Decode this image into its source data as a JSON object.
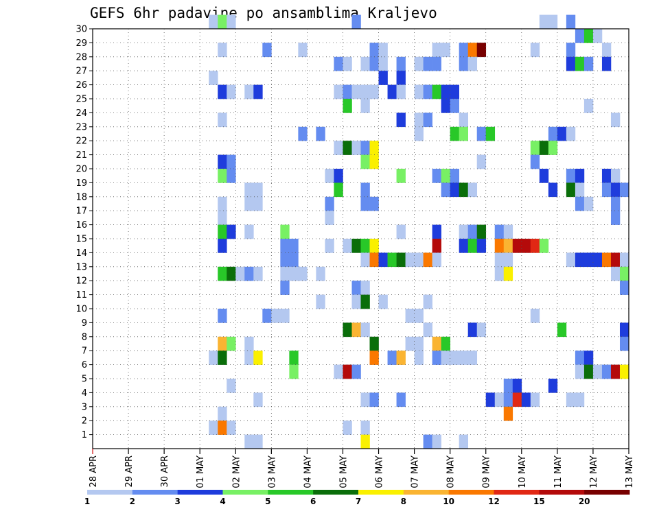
{
  "chart_data": {
    "type": "heatmap",
    "title": "GEFS 6hr padavine po ansamblima Kraljevo",
    "x_tick_labels": [
      "28 APR",
      "29 APR",
      "30 APR",
      "01 MAY",
      "02 MAY",
      "03 MAY",
      "04 MAY",
      "05 MAY",
      "06 MAY",
      "07 MAY",
      "08 MAY",
      "09 MAY",
      "10 MAY",
      "11 MAY",
      "12 MAY",
      "13 MAY"
    ],
    "y_tick_labels": [
      1,
      2,
      3,
      4,
      5,
      6,
      7,
      8,
      9,
      10,
      11,
      12,
      13,
      14,
      15,
      16,
      17,
      18,
      19,
      20,
      21,
      22,
      23,
      24,
      25,
      26,
      27,
      28,
      29,
      30
    ],
    "x_range": [
      0,
      60
    ],
    "y_range": [
      0,
      30
    ],
    "steps_per_day": 4,
    "grid": true,
    "grid_style": "dotted",
    "legend": {
      "placement": "bottom",
      "labels": [
        "1",
        "2",
        "3",
        "4",
        "5",
        "6",
        "7",
        "8",
        "10",
        "12",
        "15",
        "20"
      ],
      "colors": [
        "#b4c8f0",
        "#648cf0",
        "#1e3cdc",
        "#78f064",
        "#28c828",
        "#0a6e0a",
        "#faf000",
        "#fab432",
        "#fa7800",
        "#e12814",
        "#b40a0a",
        "#780000"
      ]
    },
    "cells": [
      [
        13,
        30,
        1
      ],
      [
        14,
        30,
        4
      ],
      [
        15,
        30,
        1
      ],
      [
        29,
        30,
        2
      ],
      [
        50,
        30,
        1
      ],
      [
        51,
        30,
        1
      ],
      [
        53,
        30,
        2
      ],
      [
        54,
        29,
        2
      ],
      [
        55,
        29,
        5
      ],
      [
        56,
        29,
        1
      ],
      [
        14,
        28,
        1
      ],
      [
        19,
        28,
        2
      ],
      [
        23,
        28,
        1
      ],
      [
        31,
        28,
        2
      ],
      [
        32,
        28,
        1
      ],
      [
        38,
        28,
        1
      ],
      [
        39,
        28,
        1
      ],
      [
        41,
        28,
        2
      ],
      [
        42,
        28,
        9
      ],
      [
        43,
        28,
        12
      ],
      [
        49,
        28,
        1
      ],
      [
        53,
        28,
        2
      ],
      [
        57,
        28,
        1
      ],
      [
        27,
        27,
        2
      ],
      [
        28,
        27,
        1
      ],
      [
        30,
        27,
        1
      ],
      [
        31,
        27,
        2
      ],
      [
        32,
        27,
        1
      ],
      [
        34,
        27,
        2
      ],
      [
        36,
        27,
        1
      ],
      [
        37,
        27,
        2
      ],
      [
        38,
        27,
        2
      ],
      [
        41,
        27,
        2
      ],
      [
        42,
        27,
        1
      ],
      [
        53,
        27,
        3
      ],
      [
        54,
        27,
        5
      ],
      [
        55,
        27,
        2
      ],
      [
        57,
        27,
        3
      ],
      [
        13,
        26,
        1
      ],
      [
        32,
        26,
        3
      ],
      [
        34,
        26,
        3
      ],
      [
        14,
        25,
        3
      ],
      [
        15,
        25,
        1
      ],
      [
        17,
        25,
        1
      ],
      [
        18,
        25,
        3
      ],
      [
        27,
        25,
        1
      ],
      [
        28,
        25,
        2
      ],
      [
        29,
        25,
        1
      ],
      [
        30,
        25,
        1
      ],
      [
        31,
        25,
        1
      ],
      [
        33,
        25,
        3
      ],
      [
        34,
        25,
        1
      ],
      [
        36,
        25,
        1
      ],
      [
        37,
        25,
        2
      ],
      [
        38,
        25,
        5
      ],
      [
        39,
        25,
        3
      ],
      [
        40,
        25,
        3
      ],
      [
        28,
        24,
        5
      ],
      [
        30,
        24,
        1
      ],
      [
        39,
        24,
        3
      ],
      [
        40,
        24,
        2
      ],
      [
        55,
        24,
        1
      ],
      [
        14,
        23,
        1
      ],
      [
        34,
        23,
        3
      ],
      [
        36,
        23,
        1
      ],
      [
        37,
        23,
        2
      ],
      [
        41,
        23,
        1
      ],
      [
        58,
        23,
        1
      ],
      [
        23,
        22,
        2
      ],
      [
        25,
        22,
        2
      ],
      [
        36,
        22,
        1
      ],
      [
        40,
        22,
        5
      ],
      [
        41,
        22,
        4
      ],
      [
        43,
        22,
        2
      ],
      [
        44,
        22,
        5
      ],
      [
        51,
        22,
        2
      ],
      [
        52,
        22,
        3
      ],
      [
        53,
        22,
        1
      ],
      [
        27,
        21,
        1
      ],
      [
        28,
        21,
        6
      ],
      [
        29,
        21,
        1
      ],
      [
        30,
        21,
        2
      ],
      [
        31,
        21,
        7
      ],
      [
        49,
        21,
        4
      ],
      [
        50,
        21,
        6
      ],
      [
        51,
        21,
        4
      ],
      [
        14,
        20,
        3
      ],
      [
        15,
        20,
        2
      ],
      [
        30,
        20,
        4
      ],
      [
        31,
        20,
        7
      ],
      [
        43,
        20,
        1
      ],
      [
        49,
        20,
        2
      ],
      [
        14,
        19,
        4
      ],
      [
        15,
        19,
        2
      ],
      [
        26,
        19,
        1
      ],
      [
        27,
        19,
        3
      ],
      [
        34,
        19,
        4
      ],
      [
        38,
        19,
        2
      ],
      [
        39,
        19,
        4
      ],
      [
        40,
        19,
        2
      ],
      [
        50,
        19,
        3
      ],
      [
        53,
        19,
        2
      ],
      [
        54,
        19,
        3
      ],
      [
        57,
        19,
        3
      ],
      [
        58,
        19,
        1
      ],
      [
        17,
        18,
        1
      ],
      [
        18,
        18,
        1
      ],
      [
        27,
        18,
        5
      ],
      [
        30,
        18,
        2
      ],
      [
        39,
        18,
        2
      ],
      [
        40,
        18,
        3
      ],
      [
        41,
        18,
        6
      ],
      [
        42,
        18,
        1
      ],
      [
        51,
        18,
        3
      ],
      [
        53,
        18,
        6
      ],
      [
        54,
        18,
        1
      ],
      [
        57,
        18,
        2
      ],
      [
        58,
        18,
        3
      ],
      [
        59,
        18,
        2
      ],
      [
        14,
        17,
        1
      ],
      [
        17,
        17,
        1
      ],
      [
        18,
        17,
        1
      ],
      [
        26,
        17,
        2
      ],
      [
        30,
        17,
        2
      ],
      [
        31,
        17,
        2
      ],
      [
        54,
        17,
        2
      ],
      [
        55,
        17,
        1
      ],
      [
        58,
        17,
        2
      ],
      [
        14,
        16,
        1
      ],
      [
        26,
        16,
        1
      ],
      [
        58,
        16,
        2
      ],
      [
        14,
        15,
        5
      ],
      [
        15,
        15,
        3
      ],
      [
        17,
        15,
        1
      ],
      [
        21,
        15,
        4
      ],
      [
        34,
        15,
        1
      ],
      [
        38,
        15,
        3
      ],
      [
        41,
        15,
        1
      ],
      [
        42,
        15,
        2
      ],
      [
        43,
        15,
        6
      ],
      [
        45,
        15,
        2
      ],
      [
        46,
        15,
        1
      ],
      [
        14,
        14,
        3
      ],
      [
        21,
        14,
        2
      ],
      [
        22,
        14,
        2
      ],
      [
        26,
        14,
        1
      ],
      [
        28,
        14,
        1
      ],
      [
        29,
        14,
        6
      ],
      [
        30,
        14,
        5
      ],
      [
        31,
        14,
        7
      ],
      [
        38,
        14,
        11
      ],
      [
        41,
        14,
        3
      ],
      [
        42,
        14,
        5
      ],
      [
        43,
        14,
        3
      ],
      [
        45,
        14,
        9
      ],
      [
        46,
        14,
        8
      ],
      [
        47,
        14,
        11
      ],
      [
        48,
        14,
        11
      ],
      [
        49,
        14,
        10
      ],
      [
        50,
        14,
        4
      ],
      [
        21,
        13,
        2
      ],
      [
        22,
        13,
        2
      ],
      [
        30,
        13,
        1
      ],
      [
        31,
        13,
        9
      ],
      [
        32,
        13,
        3
      ],
      [
        33,
        13,
        5
      ],
      [
        34,
        13,
        6
      ],
      [
        35,
        13,
        1
      ],
      [
        36,
        13,
        1
      ],
      [
        37,
        13,
        9
      ],
      [
        38,
        13,
        1
      ],
      [
        45,
        13,
        1
      ],
      [
        46,
        13,
        1
      ],
      [
        53,
        13,
        1
      ],
      [
        54,
        13,
        3
      ],
      [
        55,
        13,
        3
      ],
      [
        56,
        13,
        3
      ],
      [
        57,
        13,
        9
      ],
      [
        58,
        13,
        11
      ],
      [
        59,
        13,
        1
      ],
      [
        14,
        12,
        5
      ],
      [
        15,
        12,
        6
      ],
      [
        16,
        12,
        1
      ],
      [
        17,
        12,
        2
      ],
      [
        18,
        12,
        1
      ],
      [
        21,
        12,
        1
      ],
      [
        22,
        12,
        1
      ],
      [
        23,
        12,
        1
      ],
      [
        25,
        12,
        1
      ],
      [
        45,
        12,
        1
      ],
      [
        46,
        12,
        7
      ],
      [
        58,
        12,
        1
      ],
      [
        59,
        12,
        4
      ],
      [
        21,
        11,
        2
      ],
      [
        29,
        11,
        2
      ],
      [
        30,
        11,
        1
      ],
      [
        59,
        11,
        2
      ],
      [
        25,
        10,
        1
      ],
      [
        29,
        10,
        1
      ],
      [
        30,
        10,
        6
      ],
      [
        32,
        10,
        1
      ],
      [
        37,
        10,
        1
      ],
      [
        14,
        9,
        2
      ],
      [
        19,
        9,
        2
      ],
      [
        20,
        9,
        1
      ],
      [
        21,
        9,
        1
      ],
      [
        35,
        9,
        1
      ],
      [
        36,
        9,
        1
      ],
      [
        49,
        9,
        1
      ],
      [
        28,
        8,
        6
      ],
      [
        29,
        8,
        8
      ],
      [
        30,
        8,
        1
      ],
      [
        37,
        8,
        1
      ],
      [
        42,
        8,
        3
      ],
      [
        43,
        8,
        1
      ],
      [
        52,
        8,
        5
      ],
      [
        59,
        8,
        3
      ],
      [
        14,
        7,
        8
      ],
      [
        15,
        7,
        4
      ],
      [
        17,
        7,
        1
      ],
      [
        31,
        7,
        6
      ],
      [
        35,
        7,
        1
      ],
      [
        36,
        7,
        1
      ],
      [
        38,
        7,
        8
      ],
      [
        39,
        7,
        5
      ],
      [
        59,
        7,
        2
      ],
      [
        13,
        6,
        1
      ],
      [
        14,
        6,
        6
      ],
      [
        17,
        6,
        1
      ],
      [
        18,
        6,
        7
      ],
      [
        22,
        6,
        5
      ],
      [
        31,
        6,
        9
      ],
      [
        33,
        6,
        2
      ],
      [
        34,
        6,
        8
      ],
      [
        36,
        6,
        1
      ],
      [
        38,
        6,
        2
      ],
      [
        39,
        6,
        1
      ],
      [
        40,
        6,
        1
      ],
      [
        41,
        6,
        1
      ],
      [
        42,
        6,
        1
      ],
      [
        54,
        6,
        2
      ],
      [
        55,
        6,
        3
      ],
      [
        22,
        5,
        4
      ],
      [
        27,
        5,
        1
      ],
      [
        28,
        5,
        11
      ],
      [
        29,
        5,
        2
      ],
      [
        54,
        5,
        1
      ],
      [
        55,
        5,
        6
      ],
      [
        56,
        5,
        1
      ],
      [
        57,
        5,
        2
      ],
      [
        58,
        5,
        11
      ],
      [
        59,
        5,
        7
      ],
      [
        15,
        4,
        1
      ],
      [
        46,
        4,
        2
      ],
      [
        47,
        4,
        3
      ],
      [
        51,
        4,
        3
      ],
      [
        18,
        3,
        1
      ],
      [
        30,
        3,
        1
      ],
      [
        31,
        3,
        2
      ],
      [
        34,
        3,
        2
      ],
      [
        44,
        3,
        3
      ],
      [
        45,
        3,
        1
      ],
      [
        46,
        3,
        2
      ],
      [
        47,
        3,
        10
      ],
      [
        48,
        3,
        3
      ],
      [
        49,
        3,
        1
      ],
      [
        53,
        3,
        1
      ],
      [
        54,
        3,
        1
      ],
      [
        14,
        2,
        1
      ],
      [
        46,
        2,
        9
      ],
      [
        13,
        1,
        1
      ],
      [
        14,
        1,
        9
      ],
      [
        15,
        1,
        1
      ],
      [
        28,
        1,
        1
      ],
      [
        30,
        1,
        1
      ],
      [
        17,
        0,
        1
      ],
      [
        18,
        0,
        1
      ],
      [
        30,
        0,
        7
      ],
      [
        37,
        0,
        2
      ],
      [
        38,
        0,
        1
      ],
      [
        41,
        0,
        1
      ]
    ]
  }
}
